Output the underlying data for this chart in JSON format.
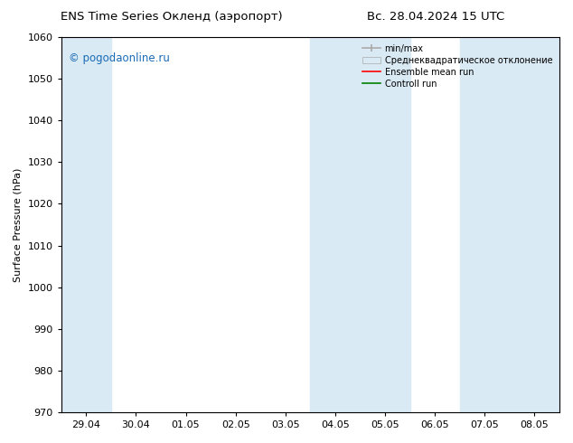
{
  "title_left": "ENS Time Series Окленд (аэропорт)",
  "title_right": "Вс. 28.04.2024 15 UTC",
  "ylabel": "Surface Pressure (hPa)",
  "ylim": [
    970,
    1060
  ],
  "yticks": [
    970,
    980,
    990,
    1000,
    1010,
    1020,
    1030,
    1040,
    1050,
    1060
  ],
  "xtick_labels": [
    "29.04",
    "30.04",
    "01.05",
    "02.05",
    "03.05",
    "04.05",
    "05.05",
    "06.05",
    "07.05",
    "08.05"
  ],
  "shade_color": "#daeaf5",
  "watermark_text": "© pogodaonline.ru",
  "watermark_color": "#1a6bb5",
  "background_color": "#ffffff"
}
